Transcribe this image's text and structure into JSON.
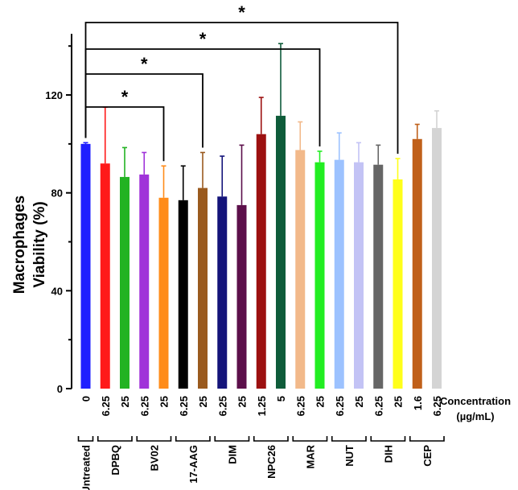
{
  "chart_data": {
    "type": "bar",
    "title": "",
    "ylabel_line1": "Macrophages",
    "ylabel_line2": "Viability (%)",
    "ylim": [
      0,
      145
    ],
    "yticks": [
      0,
      40,
      80,
      120
    ],
    "concentration_label_line1": "Concentration",
    "concentration_label_line2": "(µg/mL)",
    "bars": [
      {
        "group": "Untreated",
        "conc": "0",
        "value": 100,
        "error": 0.5,
        "color": "#1f1fff"
      },
      {
        "group": "DPBQ",
        "conc": "6.25",
        "value": 92,
        "error": 23,
        "color": "#ff1a1a"
      },
      {
        "group": "DPBQ",
        "conc": "25",
        "value": 86.5,
        "error": 12,
        "color": "#22b322"
      },
      {
        "group": "BV02",
        "conc": "6.25",
        "value": 87.5,
        "error": 9,
        "color": "#a033d9"
      },
      {
        "group": "BV02",
        "conc": "25",
        "value": 78,
        "error": 13,
        "color": "#ff8c1a"
      },
      {
        "group": "17-AAG",
        "conc": "6.25",
        "value": 77,
        "error": 14,
        "color": "#000000"
      },
      {
        "group": "17-AAG",
        "conc": "25",
        "value": 82,
        "error": 14.5,
        "color": "#9a5a1e"
      },
      {
        "group": "DIM",
        "conc": "6.25",
        "value": 78.5,
        "error": 16.5,
        "color": "#14147a"
      },
      {
        "group": "DIM",
        "conc": "25",
        "value": 75,
        "error": 24.5,
        "color": "#5c0f4a"
      },
      {
        "group": "NPC26",
        "conc": "1.25",
        "value": 104,
        "error": 15,
        "color": "#9c1010"
      },
      {
        "group": "NPC26",
        "conc": "5",
        "value": 111.5,
        "error": 29.5,
        "color": "#0f5c3a"
      },
      {
        "group": "MAR",
        "conc": "6.25",
        "value": 97.5,
        "error": 11.5,
        "color": "#f2b98a"
      },
      {
        "group": "MAR",
        "conc": "25",
        "value": 92.5,
        "error": 4.5,
        "color": "#22ee22"
      },
      {
        "group": "NUT",
        "conc": "6.25",
        "value": 93.5,
        "error": 11,
        "color": "#9cc2ff"
      },
      {
        "group": "NUT",
        "conc": "25",
        "value": 92.5,
        "error": 8,
        "color": "#c3c3f5"
      },
      {
        "group": "DIH",
        "conc": "6.25",
        "value": 91.5,
        "error": 8,
        "color": "#666666"
      },
      {
        "group": "DIH",
        "conc": "25",
        "value": 85.5,
        "error": 8.5,
        "color": "#ffff1a"
      },
      {
        "group": "CEP",
        "conc": "1.6",
        "value": 102,
        "error": 6,
        "color": "#c0601a"
      },
      {
        "group": "CEP",
        "conc": "6.25",
        "value": 106.5,
        "error": 7,
        "color": "#d4d4d4"
      }
    ],
    "groups": [
      {
        "name": "Untreated",
        "start": 0,
        "end": 0
      },
      {
        "name": "DPBQ",
        "start": 1,
        "end": 2
      },
      {
        "name": "BV02",
        "start": 3,
        "end": 4
      },
      {
        "name": "17-AAG",
        "start": 5,
        "end": 6
      },
      {
        "name": "DIM",
        "start": 7,
        "end": 8
      },
      {
        "name": "NPC26",
        "start": 9,
        "end": 10
      },
      {
        "name": "MAR",
        "start": 11,
        "end": 12
      },
      {
        "name": "NUT",
        "start": 13,
        "end": 14
      },
      {
        "name": "DIH",
        "start": 15,
        "end": 16
      },
      {
        "name": "CEP",
        "start": 17,
        "end": 18
      }
    ],
    "significance": [
      {
        "from": 0,
        "to": 4,
        "label": "*"
      },
      {
        "from": 0,
        "to": 6,
        "label": "*"
      },
      {
        "from": 0,
        "to": 12,
        "label": "*"
      },
      {
        "from": 0,
        "to": 16,
        "label": "*"
      }
    ]
  }
}
